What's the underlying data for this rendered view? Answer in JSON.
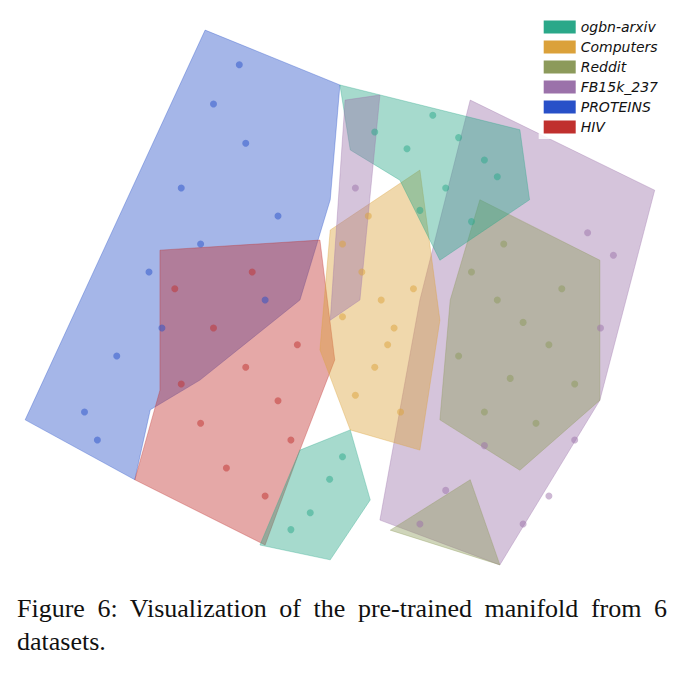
{
  "chart_data": {
    "type": "scatter",
    "caption": "Figure 6:  Visualization of the pre-trained manifold from 6 datasets.",
    "xlim": [
      0,
      100
    ],
    "ylim": [
      0,
      100
    ],
    "xticks": [
      0,
      100
    ],
    "yticks": [
      0,
      100
    ],
    "tick_labels": false,
    "grid": false,
    "legend": "top-right",
    "series": [
      {
        "name": "ogbn-arxiv",
        "color": "#2aa889",
        "values": [
          [
            55,
            80
          ],
          [
            60,
            77
          ],
          [
            64,
            83
          ],
          [
            68,
            79
          ],
          [
            72,
            75
          ],
          [
            66,
            70
          ],
          [
            62,
            66
          ],
          [
            70,
            64
          ],
          [
            74,
            72
          ],
          [
            45,
            12
          ],
          [
            48,
            18
          ],
          [
            42,
            9
          ],
          [
            50,
            22
          ]
        ],
        "regions": [
          [
            [
              49.6,
              88.4
            ],
            [
              77.5,
              80.4
            ],
            [
              79,
              67.9
            ],
            [
              65.1,
              57.1
            ],
            [
              58.9,
              71.4
            ],
            [
              51.2,
              76.8
            ]
          ],
          [
            [
              37.2,
              6.25
            ],
            [
              43.4,
              23.2
            ],
            [
              51.2,
              26.8
            ],
            [
              54.3,
              14.3
            ],
            [
              48.1,
              3.6
            ]
          ]
        ]
      },
      {
        "name": "Computers",
        "color": "#dba13a",
        "values": [
          [
            50,
            60
          ],
          [
            53,
            55
          ],
          [
            56,
            50
          ],
          [
            58,
            45
          ],
          [
            55,
            38
          ],
          [
            52,
            33
          ],
          [
            59,
            30
          ],
          [
            61,
            52
          ],
          [
            54,
            65
          ],
          [
            57,
            42
          ],
          [
            50,
            47
          ]
        ],
        "regions": [
          [
            [
              48.1,
              62.5
            ],
            [
              62,
              73.2
            ],
            [
              65.1,
              46.4
            ],
            [
              62,
              23.2
            ],
            [
              51.2,
              26.8
            ],
            [
              46.5,
              41.1
            ]
          ]
        ]
      },
      {
        "name": "Reddit",
        "color": "#8c9a5b",
        "values": [
          [
            70,
            55
          ],
          [
            74,
            50
          ],
          [
            78,
            46
          ],
          [
            82,
            42
          ],
          [
            76,
            36
          ],
          [
            72,
            30
          ],
          [
            80,
            28
          ],
          [
            84,
            52
          ],
          [
            68,
            40
          ],
          [
            86,
            35
          ],
          [
            75,
            60
          ]
        ],
        "regions": [
          [
            [
              71.3,
              67.9
            ],
            [
              89.9,
              57.1
            ],
            [
              89.9,
              32.1
            ],
            [
              77.5,
              19.6
            ],
            [
              65.1,
              28.6
            ],
            [
              66.7,
              50
            ]
          ],
          [
            [
              57.4,
              8.9
            ],
            [
              69.8,
              17.9
            ],
            [
              74.4,
              2.7
            ]
          ]
        ]
      },
      {
        "name": "FB15k_237",
        "color": "#9b72aa",
        "values": [
          [
            88,
            62
          ],
          [
            92,
            58
          ],
          [
            86,
            25
          ],
          [
            82,
            15
          ],
          [
            78,
            10
          ],
          [
            66,
            16
          ],
          [
            72,
            24
          ],
          [
            62,
            10
          ],
          [
            90,
            45
          ],
          [
            52,
            70
          ]
        ],
        "regions": [
          [
            [
              69.8,
              85.7
            ],
            [
              98.4,
              69.6
            ],
            [
              89.9,
              32.1
            ],
            [
              74.4,
              2.7
            ],
            [
              55.8,
              10.7
            ],
            [
              62,
              50
            ]
          ],
          [
            [
              50.4,
              85.7
            ],
            [
              55.8,
              86.6
            ],
            [
              52.7,
              50
            ],
            [
              48.1,
              46.4
            ]
          ]
        ]
      },
      {
        "name": "PROTEINS",
        "color": "#2850c8",
        "values": [
          [
            10,
            30
          ],
          [
            15,
            40
          ],
          [
            20,
            55
          ],
          [
            25,
            70
          ],
          [
            30,
            85
          ],
          [
            35,
            78
          ],
          [
            40,
            65
          ],
          [
            22,
            45
          ],
          [
            28,
            60
          ],
          [
            12,
            25
          ],
          [
            34,
            92
          ],
          [
            38,
            50
          ]
        ],
        "regions": [
          [
            [
              28.7,
              98.2
            ],
            [
              49.6,
              88.4
            ],
            [
              48.1,
              67.9
            ],
            [
              43.4,
              50
            ],
            [
              27.9,
              35.7
            ],
            [
              20.2,
              30.4
            ],
            [
              17.8,
              17.9
            ],
            [
              0.8,
              28.6
            ]
          ]
        ]
      },
      {
        "name": "HIV",
        "color": "#c0302e",
        "values": [
          [
            24,
            52
          ],
          [
            30,
            45
          ],
          [
            35,
            38
          ],
          [
            40,
            32
          ],
          [
            28,
            28
          ],
          [
            32,
            20
          ],
          [
            38,
            15
          ],
          [
            43,
            42
          ],
          [
            25,
            35
          ],
          [
            36,
            55
          ],
          [
            42,
            25
          ]
        ],
        "regions": [
          [
            [
              21.7,
              58.9
            ],
            [
              46.5,
              60.7
            ],
            [
              48.8,
              39.3
            ],
            [
              43.4,
              23.2
            ],
            [
              38,
              6.25
            ],
            [
              17.8,
              17.9
            ],
            [
              21.7,
              33.9
            ]
          ]
        ]
      }
    ]
  }
}
